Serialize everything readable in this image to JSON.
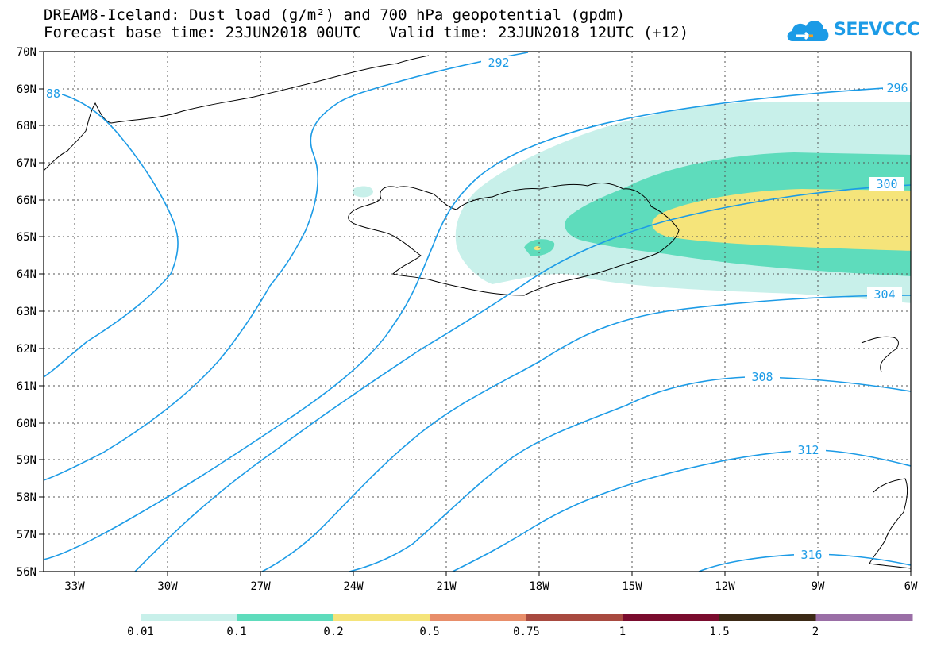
{
  "title": {
    "line1": "DREAM8-Iceland: Dust load (g/m²) and 700 hPa geopotential (gpdm)",
    "line2": "Forecast base time: 23JUN2018 00UTC   Valid time: 23JUN2018 12UTC (+12)"
  },
  "logo": {
    "text": "SEEVCCC"
  },
  "axes": {
    "lat_labels": [
      "70N",
      "69N",
      "68N",
      "67N",
      "66N",
      "65N",
      "64N",
      "63N",
      "62N",
      "61N",
      "60N",
      "59N",
      "58N",
      "57N",
      "56N"
    ],
    "lon_labels": [
      "33W",
      "30W",
      "27W",
      "24W",
      "21W",
      "18W",
      "15W",
      "12W",
      "9W",
      "6W"
    ]
  },
  "contours": {
    "color": "#1c9be6",
    "labels": [
      "292",
      "296",
      "300",
      "304",
      "308",
      "312",
      "316",
      "88"
    ]
  },
  "colorbar": {
    "colors": [
      "#c8f0ea",
      "#5edcbc",
      "#f5e47a",
      "#e88e6a",
      "#a84a40",
      "#7a0c2e",
      "#3c2a16",
      "#9a6ea6"
    ],
    "labels": [
      "0.01",
      "0.1",
      "0.2",
      "0.5",
      "0.75",
      "1",
      "1.5",
      "2"
    ]
  }
}
